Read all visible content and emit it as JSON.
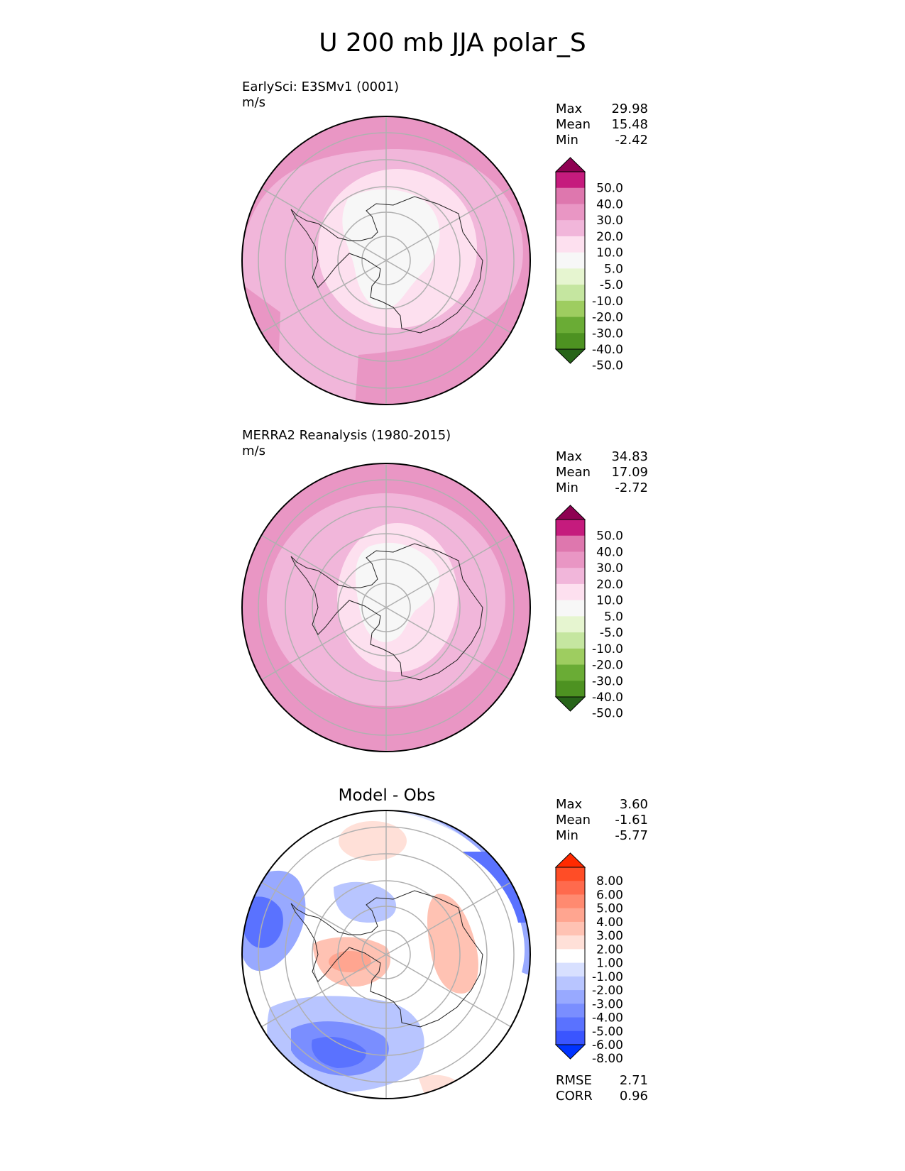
{
  "title": "U 200 mb JJA polar_S",
  "panels": [
    {
      "id": "test",
      "label": "EarlySci: E3SMv1 (0001)",
      "units": "m/s",
      "stats": [
        {
          "name": "Max",
          "value": "29.98"
        },
        {
          "name": "Mean",
          "value": "15.48"
        },
        {
          "name": "Min",
          "value": "-2.42"
        }
      ]
    },
    {
      "id": "ref",
      "label": "MERRA2 Reanalysis (1980-2015)",
      "units": "m/s",
      "stats": [
        {
          "name": "Max",
          "value": "34.83"
        },
        {
          "name": "Mean",
          "value": "17.09"
        },
        {
          "name": "Min",
          "value": "-2.72"
        }
      ]
    },
    {
      "id": "diff",
      "label": "Model - Obs",
      "stats": [
        {
          "name": "Max",
          "value": "3.60"
        },
        {
          "name": "Mean",
          "value": "-1.61"
        },
        {
          "name": "Min",
          "value": "-5.77"
        }
      ],
      "metrics": [
        {
          "name": "RMSE",
          "value": "2.71"
        },
        {
          "name": "CORR",
          "value": "0.96"
        }
      ]
    }
  ],
  "chart_data": [
    {
      "type": "heatmap",
      "title": "EarlySci: E3SMv1 (0001)",
      "units": "m/s",
      "projection": "south-polar-stereographic",
      "colorbar": {
        "levels": [
          "50.0",
          "40.0",
          "30.0",
          "20.0",
          "10.0",
          "5.0",
          "-5.0",
          "-10.0",
          "-20.0",
          "-30.0",
          "-40.0",
          "-50.0"
        ],
        "colors": [
          "#8e0152",
          "#c51b7d",
          "#de77ae",
          "#e996c4",
          "#f1b6da",
          "#fde0ef",
          "#f7f7f7",
          "#e6f5d0",
          "#c5e6a0",
          "#9ecd60",
          "#6aac35",
          "#4d9221",
          "#276419"
        ]
      }
    },
    {
      "type": "heatmap",
      "title": "MERRA2 Reanalysis (1980-2015)",
      "units": "m/s",
      "projection": "south-polar-stereographic",
      "colorbar": {
        "levels": [
          "50.0",
          "40.0",
          "30.0",
          "20.0",
          "10.0",
          "5.0",
          "-5.0",
          "-10.0",
          "-20.0",
          "-30.0",
          "-40.0",
          "-50.0"
        ],
        "colors": [
          "#8e0152",
          "#c51b7d",
          "#de77ae",
          "#e996c4",
          "#f1b6da",
          "#fde0ef",
          "#f7f7f7",
          "#e6f5d0",
          "#c5e6a0",
          "#9ecd60",
          "#6aac35",
          "#4d9221",
          "#276419"
        ]
      }
    },
    {
      "type": "heatmap",
      "title": "Model - Obs",
      "projection": "south-polar-stereographic",
      "colorbar": {
        "levels": [
          "8.00",
          "6.00",
          "5.00",
          "4.00",
          "3.00",
          "2.00",
          "1.00",
          "-1.00",
          "-2.00",
          "-3.00",
          "-4.00",
          "-5.00",
          "-6.00",
          "-8.00"
        ],
        "colors": [
          "#ff2a00",
          "#ff4d26",
          "#ff6a4d",
          "#ff8a70",
          "#ffa590",
          "#ffc2b3",
          "#ffe0d8",
          "#ffffff",
          "#d8e0ff",
          "#b8c5ff",
          "#98a9ff",
          "#7a8eff",
          "#5a72ff",
          "#3a55ff",
          "#0033ff"
        ]
      }
    }
  ]
}
